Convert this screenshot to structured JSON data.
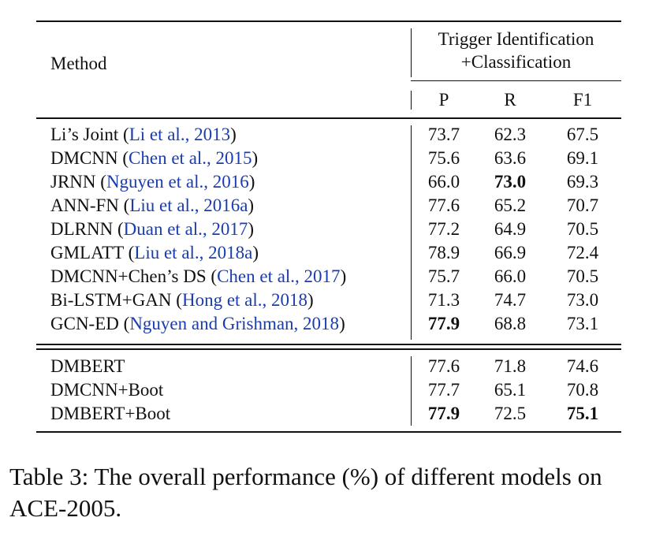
{
  "table": {
    "header": {
      "method": "Method",
      "group_line1": "Trigger Identification",
      "group_line2": "+Classification",
      "cols": [
        "P",
        "R",
        "F1"
      ]
    },
    "group1": [
      {
        "name": "Li’s Joint",
        "cite": "Li et al., 2013",
        "p": "73.7",
        "r": "62.3",
        "f1": "67.5"
      },
      {
        "name": "DMCNN",
        "cite": "Chen et al., 2015",
        "p": "75.6",
        "r": "63.6",
        "f1": "69.1"
      },
      {
        "name": "JRNN",
        "cite": "Nguyen et al., 2016",
        "p": "66.0",
        "r": "73.0",
        "f1": "69.3"
      },
      {
        "name": "ANN-FN",
        "cite": "Liu et al., 2016a",
        "p": "77.6",
        "r": "65.2",
        "f1": "70.7"
      },
      {
        "name": "DLRNN",
        "cite": "Duan et al., 2017",
        "p": "77.2",
        "r": "64.9",
        "f1": "70.5"
      },
      {
        "name": "GMLATT",
        "cite": "Liu et al., 2018a",
        "p": "78.9",
        "r": "66.9",
        "f1": "72.4"
      },
      {
        "name": "DMCNN+Chen’s DS",
        "cite": "Chen et al., 2017",
        "p": "75.7",
        "r": "66.0",
        "f1": "70.5"
      },
      {
        "name": "Bi-LSTM+GAN",
        "cite": "Hong et al., 2018",
        "p": "71.3",
        "r": "74.7",
        "f1": "73.0"
      },
      {
        "name": "GCN-ED",
        "cite": "Nguyen and Grishman, 2018",
        "p": "77.9",
        "r": "68.8",
        "f1": "73.1"
      }
    ],
    "group2": [
      {
        "name": "DMBERT",
        "p": "77.6",
        "r": "71.8",
        "f1": "74.6"
      },
      {
        "name": "DMCNN+Boot",
        "p": "77.7",
        "r": "65.1",
        "f1": "70.8"
      },
      {
        "name": "DMBERT+Boot",
        "p": "77.9",
        "r": "72.5",
        "f1": "75.1"
      }
    ],
    "paren_open": "(",
    "paren_close": ")"
  },
  "caption": "Table 3: The overall performance (%) of different models on ACE-2005."
}
